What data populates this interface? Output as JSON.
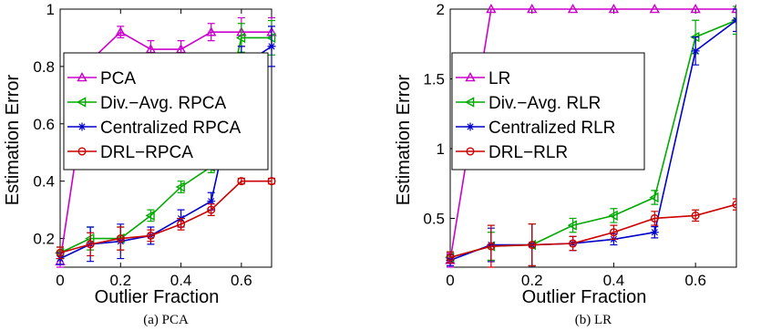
{
  "chart_data": [
    {
      "type": "line",
      "caption": "(a)  PCA",
      "xlabel": "Outlier Fraction",
      "ylabel": "Estimation Error",
      "xlim": [
        0,
        0.7
      ],
      "ylim": [
        0.1,
        1.0
      ],
      "xticks": [
        0,
        0.2,
        0.4,
        0.6
      ],
      "xtick_labels": [
        "0",
        "0.2",
        "0.4",
        "0.6"
      ],
      "yticks": [
        0.2,
        0.4,
        0.6,
        0.8,
        1.0
      ],
      "ytick_labels": [
        "0.2",
        "0.4",
        "0.6",
        "0.8",
        "1"
      ],
      "grid": false,
      "legend_position": "center-left",
      "x": [
        0,
        0.1,
        0.2,
        0.3,
        0.4,
        0.5,
        0.6,
        0.7
      ],
      "series": [
        {
          "name": "PCA",
          "color": "#cc00cc",
          "marker": "triangle-up",
          "values": [
            0.12,
            0.82,
            0.92,
            0.86,
            0.86,
            0.92,
            0.92,
            0.92
          ],
          "errors": [
            0.02,
            0.02,
            0.02,
            0.03,
            0.03,
            0.03,
            0.05,
            0.05
          ]
        },
        {
          "name": "Div.−Avg. RPCA",
          "color": "#00aa00",
          "marker": "triangle-left",
          "values": [
            0.15,
            0.2,
            0.2,
            0.28,
            0.38,
            0.45,
            0.9,
            0.9
          ],
          "errors": [
            0.02,
            0.04,
            0.04,
            0.02,
            0.02,
            0.02,
            0.05,
            0.06
          ]
        },
        {
          "name": "Centralized RPCA",
          "color": "#0000cc",
          "marker": "star",
          "values": [
            0.13,
            0.18,
            0.19,
            0.21,
            0.27,
            0.33,
            0.8,
            0.87
          ],
          "errors": [
            0.02,
            0.06,
            0.06,
            0.03,
            0.03,
            0.03,
            0.07,
            0.07
          ]
        },
        {
          "name": "DRL−RPCA",
          "color": "#cc0000",
          "marker": "circle",
          "values": [
            0.15,
            0.18,
            0.2,
            0.21,
            0.25,
            0.3,
            0.4,
            0.4
          ],
          "errors": [
            0.02,
            0.04,
            0.04,
            0.02,
            0.02,
            0.02,
            0.01,
            0.01
          ]
        }
      ]
    },
    {
      "type": "line",
      "caption": "(b)  LR",
      "xlabel": "Outlier Fraction",
      "ylabel": "Estimation Error",
      "xlim": [
        0,
        0.7
      ],
      "ylim": [
        0.15,
        2.0
      ],
      "xticks": [
        0,
        0.2,
        0.4,
        0.6
      ],
      "xtick_labels": [
        "0",
        "0.2",
        "0.4",
        "0.6"
      ],
      "yticks": [
        0.5,
        1.0,
        1.5,
        2.0
      ],
      "ytick_labels": [
        "0.5",
        "1",
        "1.5",
        "2"
      ],
      "grid": false,
      "legend_position": "center-left",
      "x": [
        0,
        0.1,
        0.2,
        0.3,
        0.4,
        0.5,
        0.6,
        0.7
      ],
      "series": [
        {
          "name": "LR",
          "color": "#cc00cc",
          "marker": "triangle-up",
          "values": [
            0.2,
            2.0,
            2.0,
            2.0,
            2.0,
            2.0,
            2.0,
            2.0
          ],
          "errors": [
            0.05,
            0.0,
            0.0,
            0.0,
            0.0,
            0.0,
            0.0,
            0.0
          ]
        },
        {
          "name": "Div.−Avg. RLR",
          "color": "#00aa00",
          "marker": "triangle-left",
          "values": [
            0.22,
            0.3,
            0.31,
            0.45,
            0.52,
            0.65,
            1.8,
            1.92
          ],
          "errors": [
            0.04,
            0.1,
            0.15,
            0.05,
            0.05,
            0.05,
            0.12,
            0.1
          ]
        },
        {
          "name": "Centralized RLR",
          "color": "#0000cc",
          "marker": "star",
          "values": [
            0.2,
            0.31,
            0.31,
            0.32,
            0.35,
            0.4,
            1.7,
            1.92
          ],
          "errors": [
            0.04,
            0.12,
            0.15,
            0.05,
            0.04,
            0.04,
            0.1,
            0.08
          ]
        },
        {
          "name": "DRL−RLR",
          "color": "#cc0000",
          "marker": "circle",
          "values": [
            0.22,
            0.3,
            0.31,
            0.32,
            0.4,
            0.5,
            0.52,
            0.6
          ],
          "errors": [
            0.04,
            0.15,
            0.15,
            0.05,
            0.05,
            0.05,
            0.04,
            0.04
          ]
        }
      ]
    }
  ]
}
